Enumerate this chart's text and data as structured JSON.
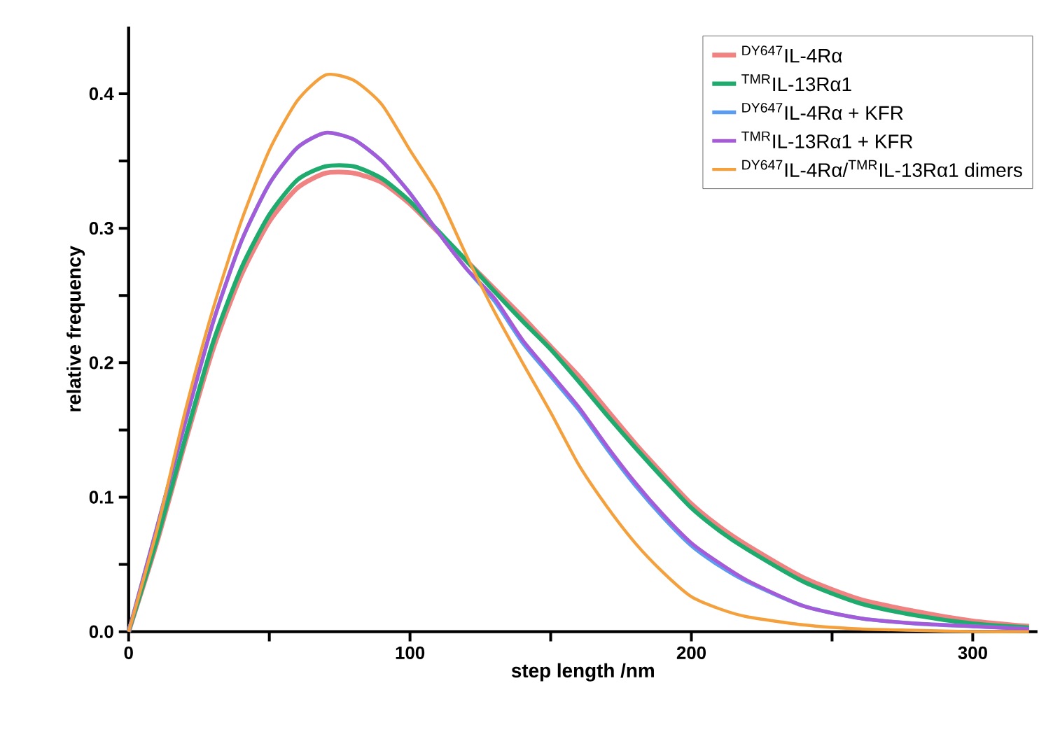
{
  "chart_data": {
    "type": "line",
    "xlabel": "step length /nm",
    "ylabel": "relative frequency",
    "x": [
      0,
      10,
      20,
      30,
      40,
      50,
      60,
      70,
      80,
      90,
      100,
      110,
      120,
      130,
      140,
      150,
      160,
      170,
      180,
      190,
      200,
      210,
      220,
      240,
      260,
      280,
      300,
      320
    ],
    "series": [
      {
        "name": "$^{DY647}$IL-4Rα",
        "color": "#f08282",
        "values": [
          0,
          0.066,
          0.14,
          0.21,
          0.265,
          0.305,
          0.33,
          0.341,
          0.341,
          0.334,
          0.318,
          0.297,
          0.276,
          0.255,
          0.234,
          0.212,
          0.19,
          0.165,
          0.14,
          0.117,
          0.095,
          0.078,
          0.064,
          0.04,
          0.024,
          0.015,
          0.008,
          0.004
        ]
      },
      {
        "name": "$^{TMR}$IL-13Rα1",
        "color": "#1fab6e",
        "values": [
          0,
          0.068,
          0.143,
          0.215,
          0.27,
          0.31,
          0.336,
          0.346,
          0.346,
          0.337,
          0.32,
          0.298,
          0.276,
          0.253,
          0.231,
          0.21,
          0.186,
          0.161,
          0.137,
          0.114,
          0.092,
          0.075,
          0.061,
          0.037,
          0.021,
          0.012,
          0.006,
          0.003
        ]
      },
      {
        "name": "$^{DY647}$IL-4Rα + KFR",
        "color": "#5b9cf0",
        "values": [
          0,
          0.077,
          0.155,
          0.23,
          0.29,
          0.333,
          0.36,
          0.371,
          0.366,
          0.35,
          0.326,
          0.297,
          0.27,
          0.246,
          0.215,
          0.19,
          0.165,
          0.136,
          0.109,
          0.085,
          0.064,
          0.049,
          0.037,
          0.019,
          0.01,
          0.006,
          0.004,
          0.002
        ]
      },
      {
        "name": "$^{TMR}$IL-13Rα1 + KFR",
        "color": "#a65ad8",
        "values": [
          0,
          0.077,
          0.155,
          0.23,
          0.29,
          0.333,
          0.36,
          0.371,
          0.366,
          0.35,
          0.326,
          0.297,
          0.27,
          0.248,
          0.217,
          0.192,
          0.167,
          0.138,
          0.111,
          0.087,
          0.066,
          0.051,
          0.038,
          0.019,
          0.01,
          0.006,
          0.004,
          0.002
        ]
      },
      {
        "name": "$^{DY647}$IL-4Rα/$^{TMR}$IL-13Rα1 dimers",
        "color": "#f4a03c",
        "values": [
          0,
          0.075,
          0.163,
          0.24,
          0.305,
          0.358,
          0.395,
          0.414,
          0.41,
          0.392,
          0.358,
          0.325,
          0.28,
          0.238,
          0.2,
          0.163,
          0.124,
          0.093,
          0.066,
          0.044,
          0.026,
          0.017,
          0.011,
          0.005,
          0.002,
          0.001,
          0,
          0
        ]
      }
    ],
    "xlim": [
      0,
      323
    ],
    "ylim": [
      0,
      0.45
    ],
    "xticks": [
      0,
      {
        "value": 50,
        "label": null
      },
      100,
      {
        "value": 150,
        "label": null
      },
      200,
      {
        "value": 250,
        "label": null
      },
      300
    ],
    "yticks": [
      {
        "value": 0,
        "label": "0.0"
      },
      {
        "value": 0.05,
        "label": null
      },
      0.1,
      {
        "value": 0.15,
        "label": null
      },
      0.2,
      {
        "value": 0.25,
        "label": null
      },
      0.3,
      {
        "value": 0.35,
        "label": null
      },
      0.4
    ],
    "legend": "top right",
    "marker": "none",
    "line_style": "solid",
    "grid": false
  }
}
